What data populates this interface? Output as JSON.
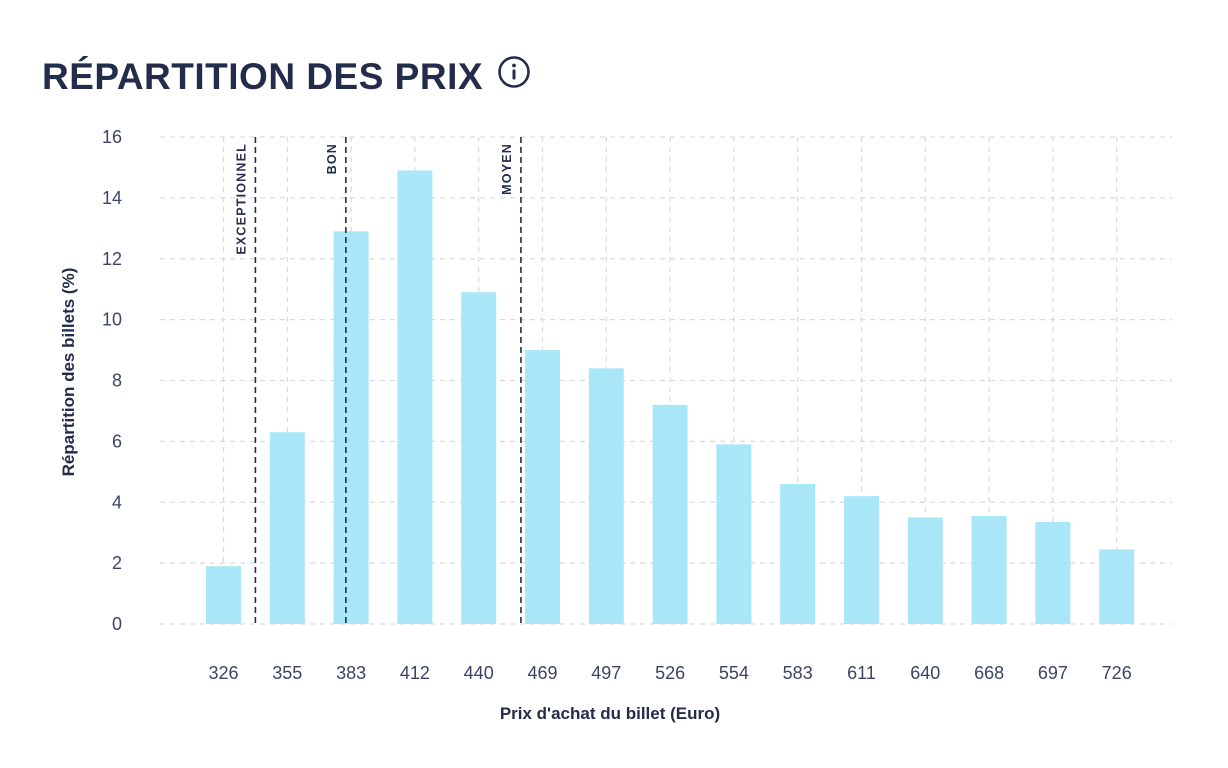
{
  "header": {
    "title": "RÉPARTITION DES PRIX",
    "info_icon": "info-circle-icon"
  },
  "colors": {
    "bar": "#a8e6f8",
    "text": "#232d4b",
    "grid": "#d9d9e3",
    "marker": "#232d4b"
  },
  "chart_data": {
    "type": "bar",
    "categories": [
      "326",
      "355",
      "383",
      "412",
      "440",
      "469",
      "497",
      "526",
      "554",
      "583",
      "611",
      "640",
      "668",
      "697",
      "726"
    ],
    "values": [
      1.9,
      6.3,
      12.9,
      14.9,
      10.9,
      9.0,
      8.4,
      7.2,
      5.9,
      4.6,
      4.2,
      3.5,
      3.55,
      3.35,
      2.45
    ],
    "xlabel": "Prix d'achat du billet (Euro)",
    "ylabel": "Répartition des billets (%)",
    "ylim": [
      0,
      16
    ],
    "yticks": [
      0,
      2,
      4,
      6,
      8,
      10,
      12,
      14,
      16
    ],
    "grid": true,
    "markers": [
      {
        "label": "EXCEPTIONNEL",
        "x": 340.5
      },
      {
        "label": "BON",
        "x": 380.7
      },
      {
        "label": "MOYEN",
        "x": 459.2
      }
    ]
  }
}
